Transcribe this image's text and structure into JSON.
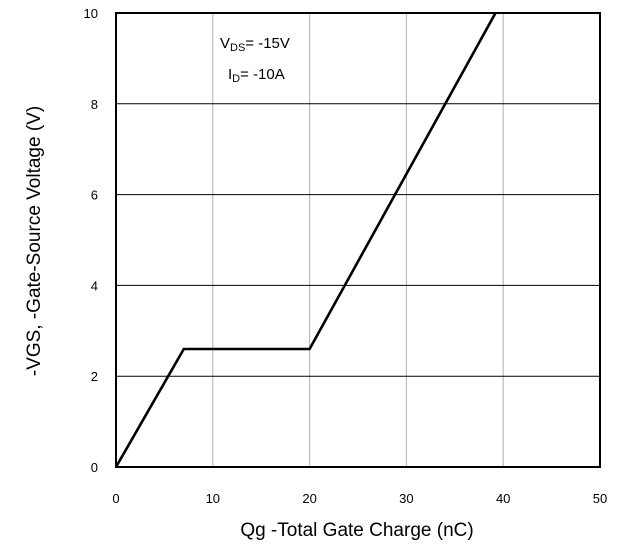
{
  "chart_data": {
    "type": "line",
    "title": "",
    "xlabel": "Qg -Total Gate Charge (nC)",
    "ylabel": "-VGS, -Gate-Source Voltage (V)",
    "xlim": [
      0,
      50
    ],
    "ylim": [
      0,
      10
    ],
    "xticks": [
      "0",
      "10",
      "20",
      "30",
      "40",
      "50"
    ],
    "yticks": [
      "0",
      "2",
      "4",
      "6",
      "8",
      "10"
    ],
    "grid": true,
    "series": [
      {
        "x": [
          0,
          7,
          20,
          39.2
        ],
        "y": [
          0,
          2.6,
          2.6,
          10
        ]
      }
    ],
    "annotations": {
      "vds": {
        "symbol": "V",
        "subscript": "DS",
        "value": "= -15V"
      },
      "id": {
        "symbol": "I",
        "subscript": "D",
        "value": "= -10A"
      }
    }
  }
}
